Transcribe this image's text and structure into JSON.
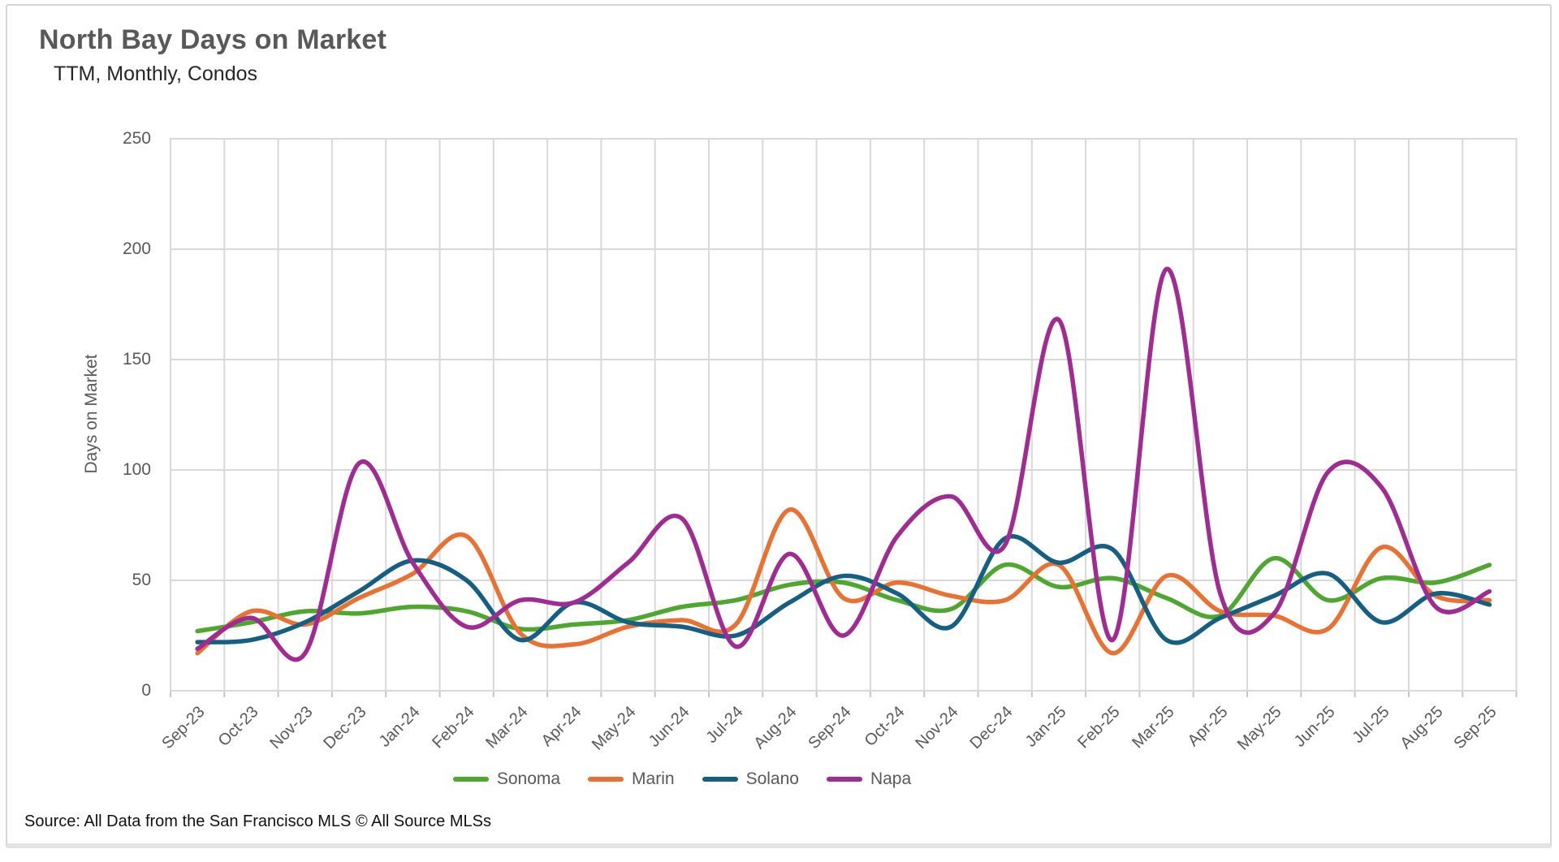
{
  "header": {
    "title": "North Bay Days on Market",
    "subtitle": "TTM, Monthly, Condos"
  },
  "source_note": "Source: All Data from the San Francisco MLS © All Source MLSs",
  "chart_data": {
    "type": "line",
    "title": "North Bay Days on Market",
    "subtitle": "TTM, Monthly, Condos",
    "xlabel": "",
    "ylabel": "Days on Market",
    "ylim": [
      0,
      250
    ],
    "yticks": [
      0,
      50,
      100,
      150,
      200,
      250
    ],
    "grid": true,
    "smooth_lines": true,
    "legend_position": "bottom",
    "gridline_color": "#d9d9d9",
    "axis_text_color": "#595959",
    "categories": [
      "Sep-23",
      "Oct-23",
      "Nov-23",
      "Dec-23",
      "Jan-24",
      "Feb-24",
      "Mar-24",
      "Apr-24",
      "May-24",
      "Jun-24",
      "Jul-24",
      "Aug-24",
      "Sep-24",
      "Oct-24",
      "Nov-24",
      "Dec-24",
      "Jan-25",
      "Feb-25",
      "Mar-25",
      "Apr-25",
      "May-25",
      "Jun-25",
      "Jul-25",
      "Aug-25",
      "Sep-25"
    ],
    "series": [
      {
        "name": "Sonoma",
        "color": "#4EA72E",
        "values": [
          27,
          31,
          36,
          35,
          38,
          36,
          28,
          30,
          32,
          38,
          41,
          48,
          49,
          41,
          37,
          57,
          47,
          51,
          42,
          34,
          60,
          41,
          51,
          49,
          57
        ]
      },
      {
        "name": "Marin",
        "color": "#E97132",
        "values": [
          17,
          36,
          30,
          42,
          53,
          70,
          26,
          21,
          29,
          32,
          30,
          82,
          42,
          49,
          43,
          41,
          57,
          17,
          52,
          36,
          34,
          28,
          65,
          43,
          41
        ]
      },
      {
        "name": "Solano",
        "color": "#156082",
        "values": [
          22,
          23,
          31,
          45,
          59,
          50,
          23,
          40,
          31,
          29,
          25,
          40,
          52,
          44,
          29,
          69,
          58,
          64,
          23,
          33,
          43,
          53,
          31,
          44,
          39
        ]
      },
      {
        "name": "Napa",
        "color": "#A02B93",
        "values": [
          19,
          33,
          17,
          103,
          58,
          29,
          41,
          40,
          58,
          78,
          20,
          62,
          25,
          70,
          88,
          66,
          168,
          23,
          191,
          44,
          35,
          99,
          92,
          38,
          45
        ]
      }
    ]
  }
}
